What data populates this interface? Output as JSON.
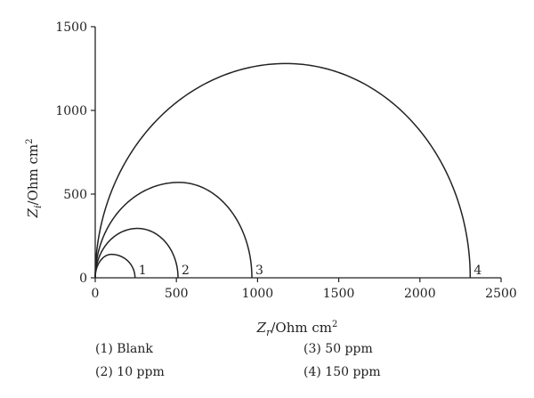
{
  "chart_data": {
    "type": "line",
    "xlabel": {
      "main": "Z",
      "sub": "r",
      "rest": "/Ohm cm",
      "sup": "2"
    },
    "ylabel": {
      "main": "Z",
      "sub": "i",
      "rest": "/Ohm cm",
      "sup": "2"
    },
    "xlim": [
      0,
      2500
    ],
    "ylim": [
      0,
      1500
    ],
    "xticks": [
      {
        "value": 0,
        "label": "0"
      },
      {
        "value": 500,
        "label": "500"
      },
      {
        "value": 1000,
        "label": "1000"
      },
      {
        "value": 1500,
        "label": "1500"
      },
      {
        "value": 2000,
        "label": "2000"
      },
      {
        "value": 2500,
        "label": "2500"
      }
    ],
    "yticks": [
      {
        "value": 0,
        "label": "0"
      },
      {
        "value": 500,
        "label": "500"
      },
      {
        "value": 1000,
        "label": "1000"
      },
      {
        "value": 1500,
        "label": "1500"
      }
    ],
    "grid": false,
    "line_color": "#222222",
    "series": [
      {
        "name": "(1) Blank",
        "label": "1",
        "x_start": 0,
        "x_end": 245,
        "peak_x": 100,
        "peak_y": 140
      },
      {
        "name": "(2) 10 ppm",
        "label": "2",
        "x_start": 0,
        "x_end": 510,
        "peak_x": 260,
        "peak_y": 295
      },
      {
        "name": "(3) 50 ppm",
        "label": "3",
        "x_start": 0,
        "x_end": 965,
        "peak_x": 515,
        "peak_y": 570
      },
      {
        "name": "(4) 150 ppm",
        "label": "4",
        "x_start": 0,
        "x_end": 2310,
        "peak_x": 1175,
        "peak_y": 1280
      }
    ],
    "legend": {
      "placement": "bottom",
      "entries": [
        "(1) Blank",
        "(2) 10 ppm",
        "(3) 50 ppm",
        "(4) 150 ppm"
      ]
    }
  }
}
